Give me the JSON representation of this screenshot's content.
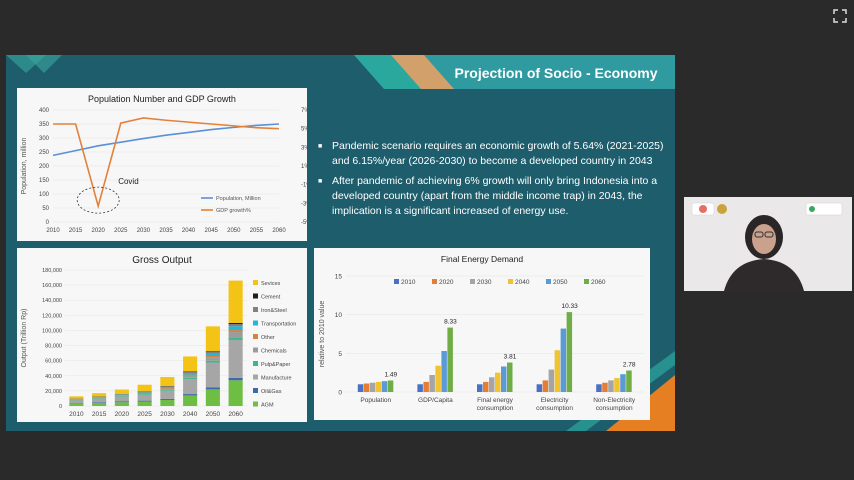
{
  "slide": {
    "title": "Projection of Socio - Economy",
    "bullets": [
      "Pandemic scenario requires an economic growth of 5.64% (2021-2025) and 6.15%/year (2026-2030) to become a developed country in 2043",
      "After pandemic of achieving 6% growth will only bring Indonesia into a developed country (apart from the middle income trap) in 2043, the implication is a significant increased of energy use."
    ]
  },
  "chart_data": [
    {
      "type": "line",
      "title": "Population Number and GDP Growth",
      "ylabel": "Population, million",
      "x": [
        2010,
        2015,
        2020,
        2025,
        2030,
        2035,
        2040,
        2045,
        2050,
        2055,
        2060
      ],
      "xticks": [
        "2010",
        "2015",
        "2020",
        "2025",
        "2030",
        "2035",
        "2040",
        "2045",
        "2050",
        "2055",
        "2060"
      ],
      "yticks_left": [
        "0",
        "50",
        "100",
        "150",
        "200",
        "250",
        "300",
        "350",
        "400"
      ],
      "yticks_right": [
        "7%",
        "5%",
        "3%",
        "1%",
        "-1%",
        "-3%",
        "-5%"
      ],
      "ylim": [
        0,
        400
      ],
      "y2lim": [
        -5,
        7
      ],
      "annotation": "Covid",
      "series": [
        {
          "name": "Population, Million",
          "axis": "left",
          "color": "#5b8fd6",
          "values": [
            238,
            255,
            272,
            285,
            298,
            310,
            320,
            330,
            338,
            345,
            350
          ]
        },
        {
          "name": "GDP growth%",
          "axis": "right",
          "color": "#e2823a",
          "values": [
            5.5,
            5.5,
            -3.3,
            5.6,
            6.15,
            5.9,
            5.7,
            5.5,
            5.3,
            5.1,
            5.0
          ]
        }
      ],
      "legend": "bottom-right"
    },
    {
      "type": "bar",
      "stacked": true,
      "title": "Gross Output",
      "ylabel": "Output (Trillion Rp)",
      "categories": [
        "2010",
        "2015",
        "2020",
        "2025",
        "2030",
        "2040",
        "2050",
        "2060"
      ],
      "yticks": [
        "0",
        "20,000",
        "40,000",
        "60,000",
        "80,000",
        "100,000",
        "120,000",
        "140,000",
        "160,000",
        "180,000"
      ],
      "ylim": [
        0,
        180000
      ],
      "legend": "right",
      "series": [
        {
          "name": "AGM",
          "color": "#6fbe44",
          "values": [
            3000,
            4000,
            5000,
            6000,
            8000,
            14000,
            22000,
            34000
          ]
        },
        {
          "name": "Oil&Gas",
          "color": "#3d6aa8",
          "values": [
            800,
            900,
            1000,
            1100,
            1300,
            1800,
            2500,
            3400
          ]
        },
        {
          "name": "Manufacture",
          "color": "#a6a6a6",
          "values": [
            3500,
            4500,
            6000,
            8000,
            11000,
            20000,
            33000,
            50000
          ]
        },
        {
          "name": "Pulp&Paper",
          "color": "#3bb88a",
          "values": [
            500,
            600,
            700,
            800,
            1000,
            1600,
            2400,
            3500
          ]
        },
        {
          "name": "Chemicals",
          "color": "#9c9c9c",
          "values": [
            700,
            900,
            1100,
            1300,
            1800,
            3000,
            4500,
            7000
          ]
        },
        {
          "name": "Other",
          "color": "#d58342",
          "values": [
            300,
            400,
            500,
            600,
            800,
            1200,
            1800,
            2600
          ]
        },
        {
          "name": "Transportation",
          "color": "#22b7d4",
          "values": [
            500,
            600,
            700,
            900,
            1200,
            2000,
            3200,
            5000
          ]
        },
        {
          "name": "Iron&Steel",
          "color": "#808080",
          "values": [
            300,
            400,
            500,
            600,
            800,
            1300,
            2000,
            3000
          ]
        },
        {
          "name": "Cement",
          "color": "#1f1f1f",
          "values": [
            200,
            250,
            300,
            350,
            450,
            700,
            1000,
            1500
          ]
        },
        {
          "name": "Sevices",
          "color": "#f3c316",
          "values": [
            3000,
            4500,
            6000,
            8500,
            12000,
            20000,
            33000,
            56000
          ]
        }
      ]
    },
    {
      "type": "bar",
      "title": "Final Energy Demand",
      "ylabel": "relative to 2010 value",
      "categories": [
        "Population",
        "GDP/Capita",
        "Final energy\nconsumption",
        "Electricity\nconsumption",
        "Non-Electricity\nconsumption"
      ],
      "yticks": [
        "0",
        "5",
        "10",
        "15"
      ],
      "ylim": [
        0,
        15
      ],
      "legend": "top",
      "data_labels": [
        "1.49",
        "8.33",
        "3.81",
        "10.33",
        "2.78"
      ],
      "series": [
        {
          "name": "2010",
          "color": "#4a72c4",
          "values": [
            1,
            1,
            1,
            1,
            1
          ]
        },
        {
          "name": "2020",
          "color": "#e57d35",
          "values": [
            1.1,
            1.3,
            1.3,
            1.5,
            1.2
          ]
        },
        {
          "name": "2030",
          "color": "#a5a5a5",
          "values": [
            1.2,
            2.2,
            1.9,
            2.9,
            1.5
          ]
        },
        {
          "name": "2040",
          "color": "#f1c232",
          "values": [
            1.3,
            3.4,
            2.5,
            5.4,
            1.8
          ]
        },
        {
          "name": "2050",
          "color": "#5b9bd5",
          "values": [
            1.4,
            5.3,
            3.3,
            8.2,
            2.3
          ]
        },
        {
          "name": "2060",
          "color": "#70ad47",
          "values": [
            1.49,
            8.33,
            3.81,
            10.33,
            2.78
          ]
        }
      ]
    }
  ],
  "colors": {
    "slide_bg": "#1e5d6c",
    "accent_orange": "#e67e22",
    "accent_teal": "#2ba89e",
    "page_bg": "#2a2a2a"
  },
  "icons": {
    "fullscreen": "fullscreen-icon",
    "video": "participant-video"
  }
}
